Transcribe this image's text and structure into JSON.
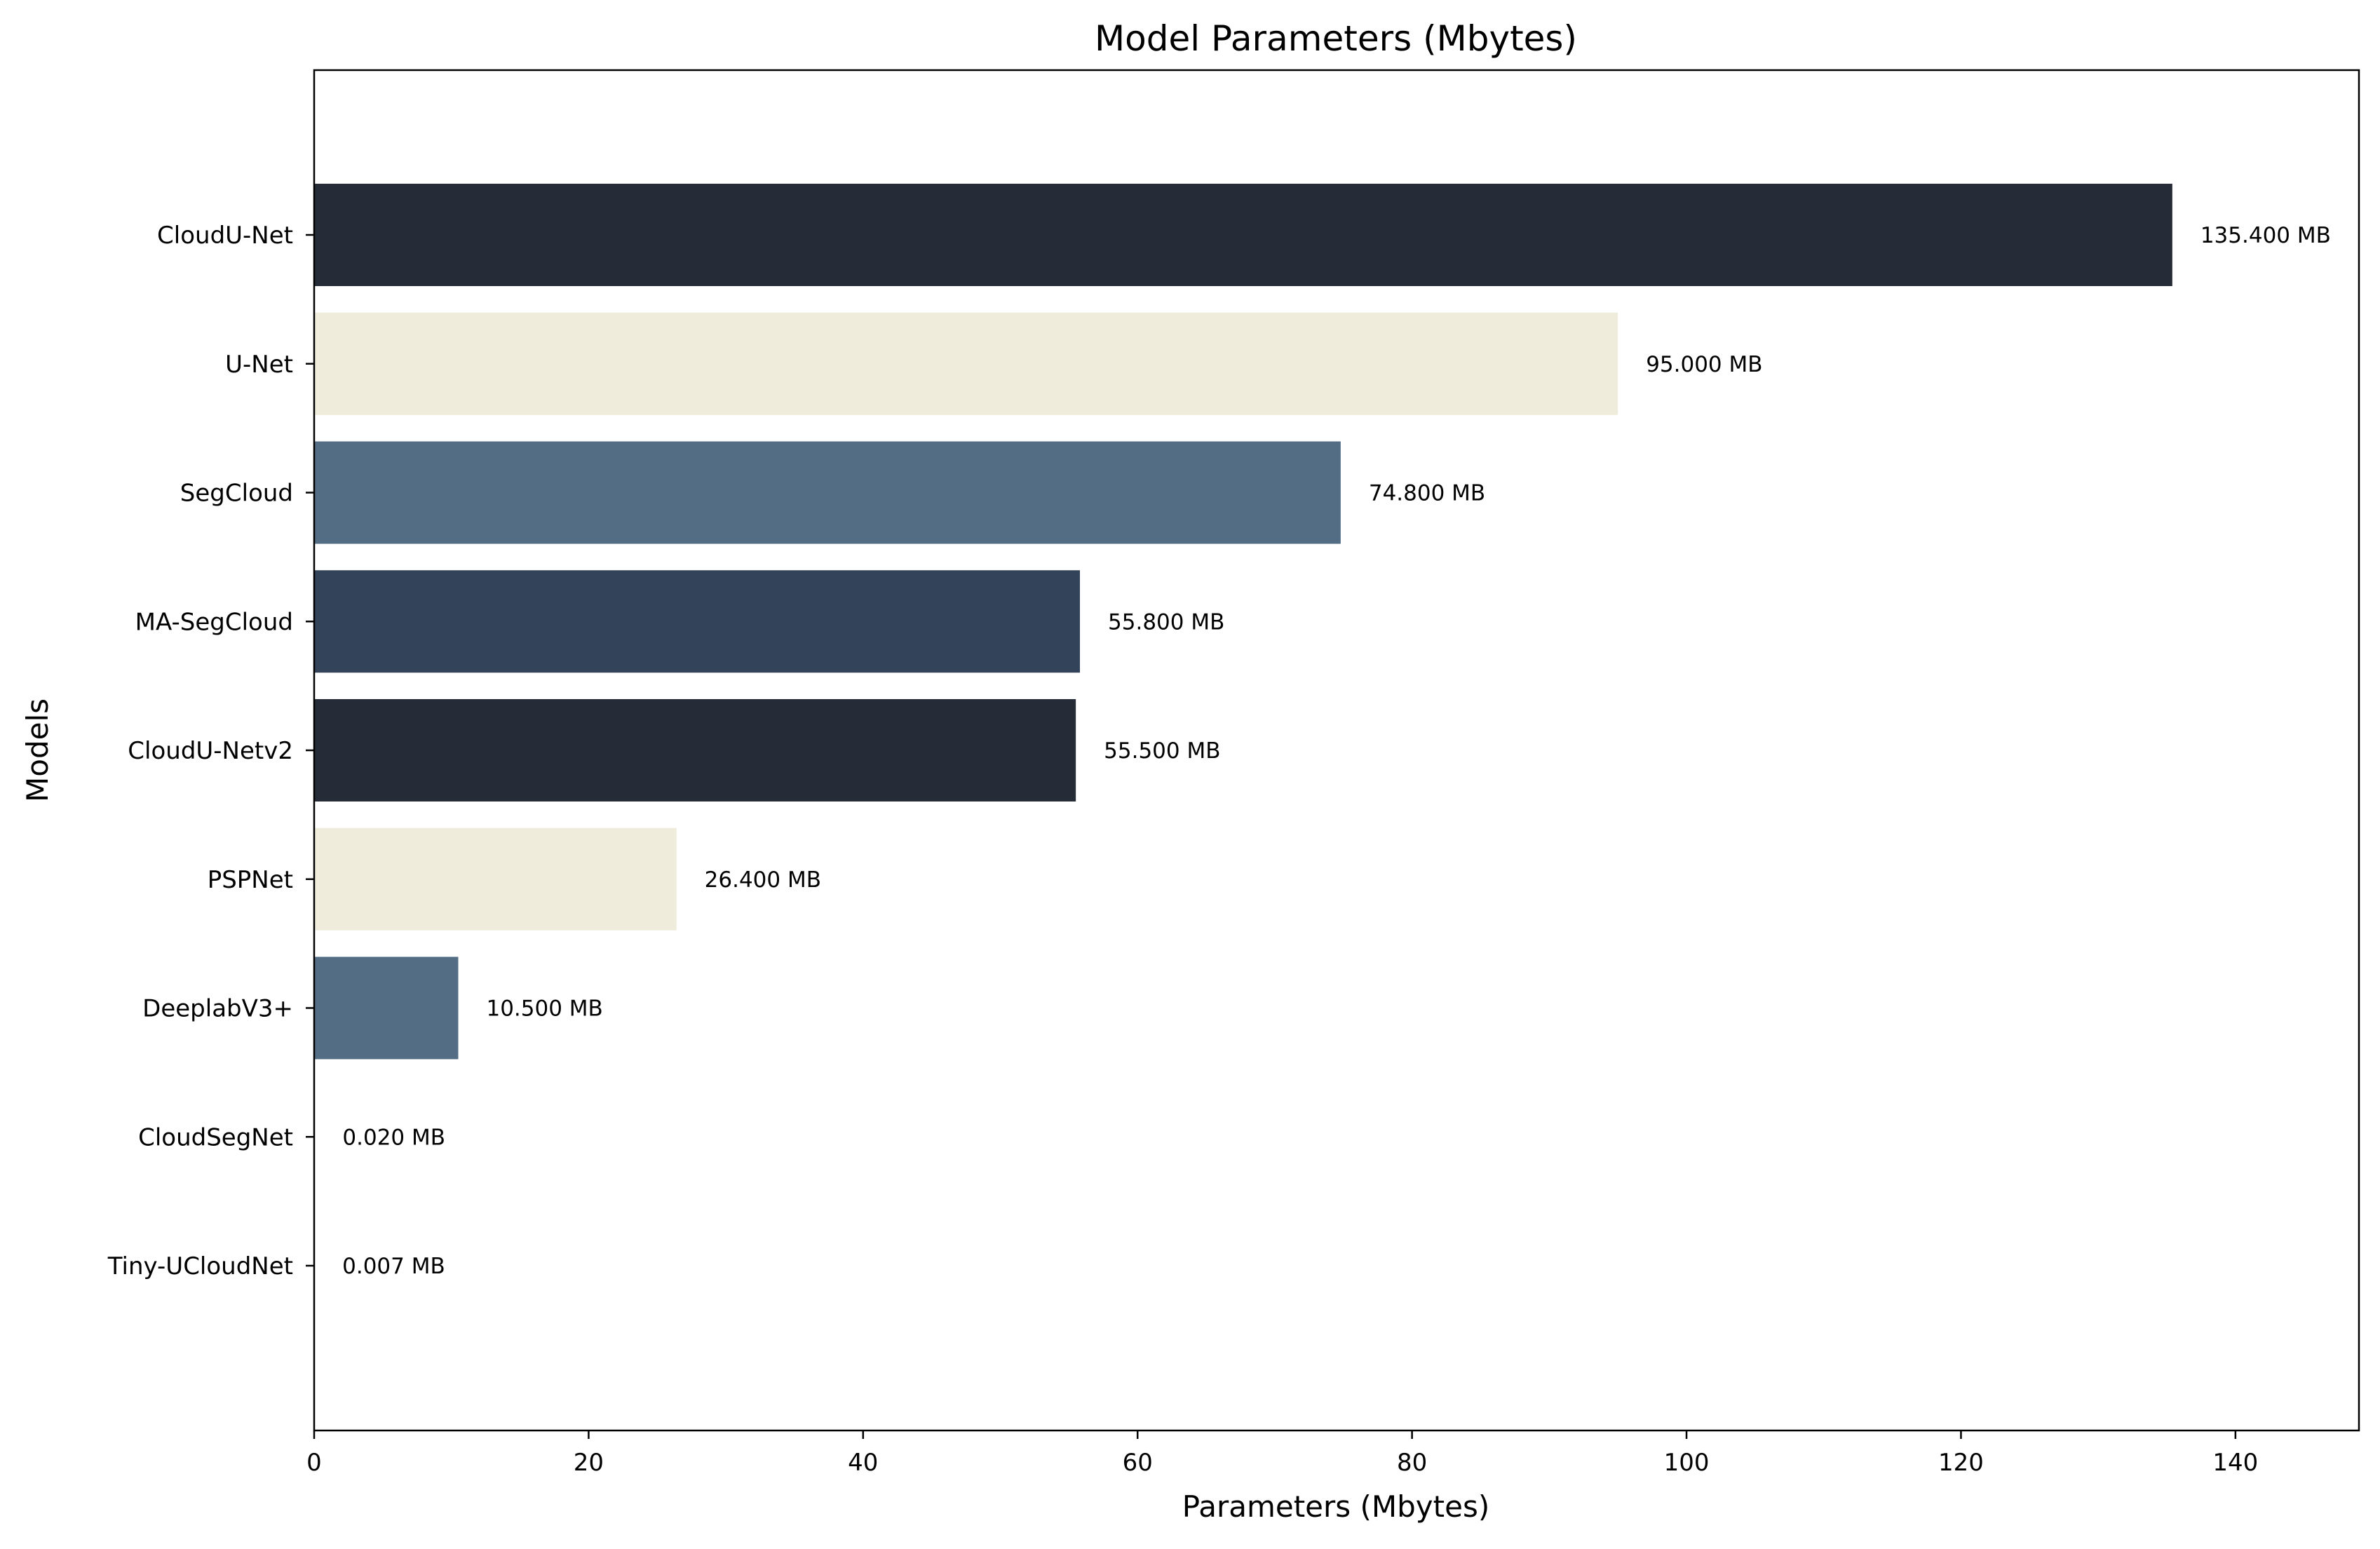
{
  "chart_data": {
    "type": "bar",
    "orientation": "horizontal",
    "title": "Model Parameters (Mbytes)",
    "xlabel": "Parameters (Mbytes)",
    "ylabel": "Models",
    "xlim": [
      0,
      149
    ],
    "xticks": [
      0,
      20,
      40,
      60,
      80,
      100,
      120,
      140
    ],
    "grid": false,
    "legend": "none",
    "categories": [
      "CloudU-Net",
      "U-Net",
      "SegCloud",
      "MA-SegCloud",
      "CloudU-Netv2",
      "PSPNet",
      "DeeplabV3+",
      "CloudSegNet",
      "Tiny-UCloudNet"
    ],
    "values": [
      135.4,
      95.0,
      74.8,
      55.8,
      55.5,
      26.4,
      10.5,
      0.02,
      0.007
    ],
    "value_labels": [
      "135.400 MB",
      "95.000 MB",
      "74.800 MB",
      "55.800 MB",
      "55.500 MB",
      "26.400 MB",
      "10.500 MB",
      "0.020 MB",
      "0.007 MB"
    ],
    "colors": [
      "#252b37",
      "#efecdc",
      "#536d84",
      "#334359",
      "#252b37",
      "#efecdc",
      "#536d84",
      "#334359",
      "#252b37"
    ]
  }
}
